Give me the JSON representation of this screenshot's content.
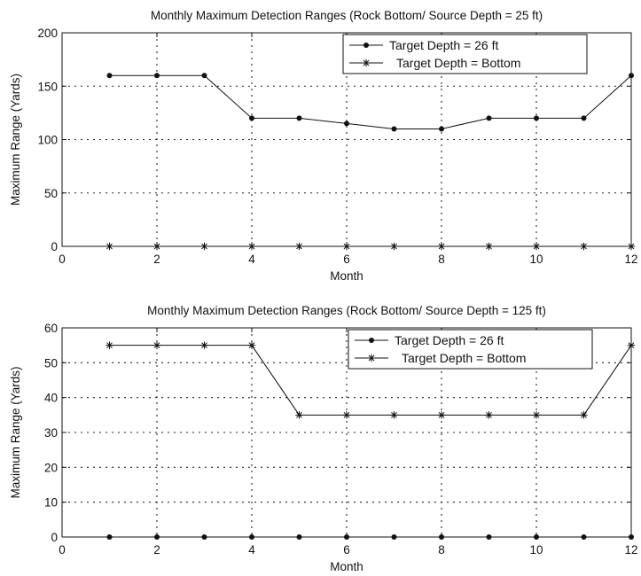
{
  "chart_data": [
    {
      "type": "line",
      "title": "Monthly Maximum Detection Ranges (Rock Bottom/ Source Depth = 25 ft)",
      "xlabel": "Month",
      "ylabel": "Maximum Range (Yards)",
      "xlim": [
        0,
        12
      ],
      "ylim": [
        0,
        200
      ],
      "xticks": [
        "0",
        "2",
        "4",
        "6",
        "8",
        "10",
        "12"
      ],
      "yticks": [
        "0",
        "50",
        "100",
        "150",
        "200"
      ],
      "grid": true,
      "legend_position": "top-right",
      "x": [
        1,
        2,
        3,
        4,
        5,
        6,
        7,
        8,
        9,
        10,
        11,
        12
      ],
      "series": [
        {
          "name": "Target Depth = 26 ft",
          "marker": "dot",
          "values": [
            160,
            160,
            160,
            120,
            120,
            115,
            110,
            110,
            120,
            120,
            120,
            160
          ]
        },
        {
          "name": "Target Depth = Bottom",
          "marker": "star",
          "values": [
            0,
            0,
            0,
            0,
            0,
            0,
            0,
            0,
            0,
            0,
            0,
            0
          ]
        }
      ]
    },
    {
      "type": "line",
      "title": "Monthly Maximum Detection Ranges (Rock Bottom/ Source Depth = 125 ft)",
      "xlabel": "Month",
      "ylabel": "Maximum Range (Yards)",
      "xlim": [
        0,
        12
      ],
      "ylim": [
        0,
        60
      ],
      "xticks": [
        "0",
        "2",
        "4",
        "6",
        "8",
        "10",
        "12"
      ],
      "yticks": [
        "0",
        "10",
        "20",
        "30",
        "40",
        "50",
        "60"
      ],
      "grid": true,
      "legend_position": "top-right",
      "x": [
        1,
        2,
        3,
        4,
        5,
        6,
        7,
        8,
        9,
        10,
        11,
        12
      ],
      "series": [
        {
          "name": "Target Depth = 26 ft",
          "marker": "dot",
          "values": [
            0,
            0,
            0,
            0,
            0,
            0,
            0,
            0,
            0,
            0,
            0,
            0
          ]
        },
        {
          "name": "Target Depth = Bottom",
          "marker": "star",
          "values": [
            55,
            55,
            55,
            55,
            35,
            35,
            35,
            35,
            35,
            35,
            35,
            55
          ]
        }
      ]
    }
  ]
}
